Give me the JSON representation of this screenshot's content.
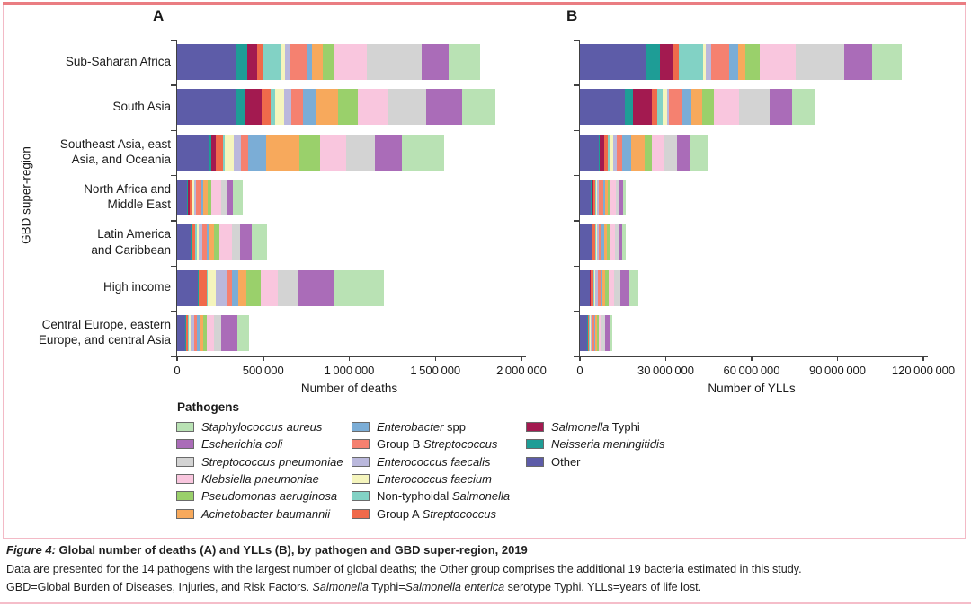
{
  "figure": {
    "panel_a_letter": "A",
    "panel_b_letter": "B",
    "y_axis_title": "GBD super-region",
    "legend_title": "Pathogens",
    "caption_title_prefix": "Figure 4:",
    "caption_title_rest": " Global number of deaths (A) and YLLs (B), by pathogen and GBD super-region, 2019",
    "caption_line2": "Data are presented for the 14 pathogens with the largest number of global deaths; the Other group comprises the additional 19 bacteria estimated in this study.",
    "caption_line3_segments": [
      {
        "t": "GBD=Global Burden of Diseases, Injuries, and Risk Factors. ",
        "i": false
      },
      {
        "t": "Salmonella",
        "i": true
      },
      {
        "t": " Typhi=",
        "i": false
      },
      {
        "t": "Salmonella enterica",
        "i": true
      },
      {
        "t": " serotype Typhi. YLLs=years of life lost.",
        "i": false
      }
    ],
    "frame_border_color": "#f3bac6",
    "frame_top_bar_color": "#ea7d82"
  },
  "pathogens": {
    "s_aureus": {
      "pre": "",
      "it": "Staphylococcus aureus",
      "post": "",
      "color": "#b9e2b4"
    },
    "e_coli": {
      "pre": "",
      "it": "Escherichia coli",
      "post": "",
      "color": "#aa6cb8"
    },
    "s_pneumoniae": {
      "pre": "",
      "it": "Streptococcus pneumoniae",
      "post": "",
      "color": "#d3d3d3"
    },
    "k_pneumoniae": {
      "pre": "",
      "it": "Klebsiella pneumoniae",
      "post": "",
      "color": "#f9c6de"
    },
    "p_aeruginosa": {
      "pre": "",
      "it": "Pseudomonas aeruginosa",
      "post": "",
      "color": "#9ad06b"
    },
    "a_baumannii": {
      "pre": "",
      "it": "Acinetobacter baumannii",
      "post": "",
      "color": "#f7a95c"
    },
    "enterobacter": {
      "pre": "",
      "it": "Enterobacter",
      "post": " spp",
      "color": "#7badd6"
    },
    "group_b_strep": {
      "pre": "Group B ",
      "it": "Streptococcus",
      "post": "",
      "color": "#f58170"
    },
    "e_faecalis": {
      "pre": "",
      "it": "Enterococcus faecalis",
      "post": "",
      "color": "#bab8dc"
    },
    "e_faecium": {
      "pre": "",
      "it": "Enterococcus faecium",
      "post": "",
      "color": "#f5f5bd"
    },
    "nt_salmonella": {
      "pre": "Non-typhoidal ",
      "it": "Salmonella",
      "post": "",
      "color": "#82d2c5"
    },
    "group_a_strep": {
      "pre": "Group A ",
      "it": "Streptococcus",
      "post": "",
      "color": "#f06a4b"
    },
    "s_typhi": {
      "pre": "",
      "it": "Salmonella",
      "post": " Typhi",
      "color": "#a31a50"
    },
    "n_meningitidis": {
      "pre": "",
      "it": "Neisseria meningitidis",
      "post": "",
      "color": "#1e9d96"
    },
    "other": {
      "pre": "Other",
      "it": "",
      "post": "",
      "color": "#5d5ca8"
    }
  },
  "legend_columns": [
    [
      "s_aureus",
      "e_coli",
      "s_pneumoniae",
      "k_pneumoniae",
      "p_aeruginosa",
      "a_baumannii"
    ],
    [
      "enterobacter",
      "group_b_strep",
      "e_faecalis",
      "e_faecium",
      "nt_salmonella",
      "group_a_strep"
    ],
    [
      "s_typhi",
      "n_meningitidis",
      "other"
    ]
  ],
  "regions": [
    {
      "name": "Sub-Saharan Africa",
      "lines": [
        "Sub-Saharan Africa"
      ]
    },
    {
      "name": "South Asia",
      "lines": [
        "South Asia"
      ]
    },
    {
      "name": "Southeast Asia, east Asia, and Oceania",
      "lines": [
        "Southeast Asia, east",
        "Asia, and Oceania"
      ]
    },
    {
      "name": "North Africa and Middle East",
      "lines": [
        "North Africa and",
        "Middle East"
      ]
    },
    {
      "name": "Latin America and Caribbean",
      "lines": [
        "Latin America",
        "and Caribbean"
      ]
    },
    {
      "name": "High income",
      "lines": [
        "High income"
      ]
    },
    {
      "name": "Central Europe, eastern Europe, and central Asia",
      "lines": [
        "Central Europe, eastern",
        "Europe, and central Asia"
      ]
    }
  ],
  "chart_data": [
    {
      "type": "bar",
      "orientation": "horizontal",
      "stacked": true,
      "panel": "A",
      "title": "Global number of deaths by pathogen and GBD super-region, 2019",
      "xlabel": "Number of deaths",
      "ylabel": "GBD super-region",
      "xlim": [
        0,
        2000000
      ],
      "grid": false,
      "legend_position": "bottom",
      "xticks": [
        {
          "v": 0,
          "label": "0"
        },
        {
          "v": 500000,
          "label": "500 000"
        },
        {
          "v": 1000000,
          "label": "1 000 000"
        },
        {
          "v": 1500000,
          "label": "1 500 000"
        },
        {
          "v": 2000000,
          "label": "2 000 000"
        }
      ],
      "categories": [
        "Sub-Saharan Africa",
        "South Asia",
        "Southeast Asia, east Asia, and Oceania",
        "North Africa and Middle East",
        "Latin America and Caribbean",
        "High income",
        "Central Europe, eastern Europe, and central Asia"
      ],
      "series": [
        {
          "id": "other",
          "name": "Other",
          "values": [
            342000,
            346000,
            183000,
            58000,
            79000,
            122000,
            47000
          ]
        },
        {
          "id": "n_meningitidis",
          "name": "Neisseria meningitidis",
          "values": [
            64000,
            52000,
            17000,
            5000,
            5000,
            3000,
            3000
          ]
        },
        {
          "id": "s_typhi",
          "name": "Salmonella Typhi",
          "values": [
            58000,
            91000,
            23000,
            8000,
            5000,
            2000,
            3000
          ]
        },
        {
          "id": "group_a_strep",
          "name": "Group A Streptococcus",
          "values": [
            30000,
            52000,
            43000,
            13000,
            18000,
            44000,
            10000
          ]
        },
        {
          "id": "nt_salmonella",
          "name": "Non-typhoidal Salmonella",
          "values": [
            110000,
            26000,
            10000,
            5000,
            8000,
            5000,
            5000
          ]
        },
        {
          "id": "e_faecium",
          "name": "Enterococcus faecium",
          "values": [
            21000,
            52000,
            52000,
            8000,
            10000,
            49000,
            13000
          ]
        },
        {
          "id": "e_faecalis",
          "name": "Enterococcus faecalis",
          "values": [
            31000,
            44000,
            43000,
            13000,
            21000,
            61000,
            18000
          ]
        },
        {
          "id": "group_b_strep",
          "name": "Group B Streptococcus",
          "values": [
            99000,
            70000,
            43000,
            29000,
            26000,
            35000,
            16000
          ]
        },
        {
          "id": "enterobacter",
          "name": "Enterobacter spp",
          "values": [
            29000,
            70000,
            105000,
            13000,
            18000,
            35000,
            16000
          ]
        },
        {
          "id": "a_baumannii",
          "name": "Acinetobacter baumannii",
          "values": [
            63000,
            131000,
            192000,
            24000,
            26000,
            44000,
            21000
          ]
        },
        {
          "id": "p_aeruginosa",
          "name": "Pseudomonas aeruginosa",
          "values": [
            65000,
            114000,
            122000,
            24000,
            31000,
            87000,
            21000
          ]
        },
        {
          "id": "k_pneumoniae",
          "name": "Klebsiella pneumoniae",
          "values": [
            192000,
            174000,
            148000,
            58000,
            73000,
            96000,
            42000
          ]
        },
        {
          "id": "s_pneumoniae",
          "name": "Streptococcus pneumoniae",
          "values": [
            319000,
            227000,
            166000,
            34000,
            47000,
            122000,
            42000
          ]
        },
        {
          "id": "e_coli",
          "name": "Escherichia coli",
          "values": [
            157000,
            209000,
            157000,
            31000,
            68000,
            209000,
            94000
          ]
        },
        {
          "id": "s_aureus",
          "name": "Staphylococcus aureus",
          "values": [
            182000,
            192000,
            245000,
            60000,
            89000,
            288000,
            68000
          ]
        }
      ]
    },
    {
      "type": "bar",
      "orientation": "horizontal",
      "stacked": true,
      "panel": "B",
      "title": "Global number of YLLs by pathogen and GBD super-region, 2019",
      "xlabel": "Number of YLLs",
      "ylabel": "GBD super-region",
      "xlim": [
        0,
        120000000
      ],
      "grid": false,
      "legend_position": "bottom",
      "xticks": [
        {
          "v": 0,
          "label": "0"
        },
        {
          "v": 30000000,
          "label": "30 000 000"
        },
        {
          "v": 60000000,
          "label": "60 000 000"
        },
        {
          "v": 90000000,
          "label": "90 000 000"
        },
        {
          "v": 120000000,
          "label": "120 000 000"
        }
      ],
      "categories": [
        "Sub-Saharan Africa",
        "South Asia",
        "Southeast Asia, east Asia, and Oceania",
        "North Africa and Middle East",
        "Latin America and Caribbean",
        "High income",
        "Central Europe, eastern Europe, and central Asia"
      ],
      "series": [
        {
          "id": "other",
          "name": "Other",
          "values": [
            23000000,
            15700000,
            6500000,
            3900000,
            4000000,
            3400000,
            2600000
          ]
        },
        {
          "id": "n_meningitidis",
          "name": "Neisseria meningitidis",
          "values": [
            5000000,
            2800000,
            400000,
            300000,
            200000,
            200000,
            100000
          ]
        },
        {
          "id": "s_typhi",
          "name": "Salmonella Typhi",
          "values": [
            4600000,
            6600000,
            1500000,
            500000,
            200000,
            100000,
            100000
          ]
        },
        {
          "id": "group_a_strep",
          "name": "Group A Streptococcus",
          "values": [
            1900000,
            1800000,
            1300000,
            700000,
            800000,
            1000000,
            500000
          ]
        },
        {
          "id": "nt_salmonella",
          "name": "Non-typhoidal Salmonella",
          "values": [
            8500000,
            2100000,
            600000,
            400000,
            400000,
            300000,
            200000
          ]
        },
        {
          "id": "e_faecium",
          "name": "Enterococcus faecium",
          "values": [
            900000,
            1400000,
            1400000,
            300000,
            300000,
            500000,
            300000
          ]
        },
        {
          "id": "e_faecalis",
          "name": "Enterococcus faecalis",
          "values": [
            1900000,
            700000,
            1300000,
            500000,
            600000,
            700000,
            400000
          ]
        },
        {
          "id": "group_b_strep",
          "name": "Group B Streptococcus",
          "values": [
            6300000,
            4700000,
            1900000,
            1500000,
            1200000,
            1000000,
            800000
          ]
        },
        {
          "id": "enterobacter",
          "name": "Enterobacter spp",
          "values": [
            3100000,
            3100000,
            3000000,
            700000,
            800000,
            700000,
            500000
          ]
        },
        {
          "id": "a_baumannii",
          "name": "Acinetobacter baumannii",
          "values": [
            2500000,
            3700000,
            4600000,
            900000,
            900000,
            800000,
            600000
          ]
        },
        {
          "id": "p_aeruginosa",
          "name": "Pseudomonas aeruginosa",
          "values": [
            5300000,
            4200000,
            2700000,
            900000,
            900000,
            1500000,
            600000
          ]
        },
        {
          "id": "k_pneumoniae",
          "name": "Klebsiella pneumoniae",
          "values": [
            12500000,
            8900000,
            3900000,
            2000000,
            1900000,
            1900000,
            1000000
          ]
        },
        {
          "id": "s_pneumoniae",
          "name": "Streptococcus pneumoniae",
          "values": [
            17000000,
            10500000,
            4900000,
            1300000,
            1300000,
            2200000,
            1000000
          ]
        },
        {
          "id": "e_coli",
          "name": "Escherichia coli",
          "values": [
            9500000,
            7900000,
            4600000,
            1100000,
            1200000,
            3100000,
            1600000
          ]
        },
        {
          "id": "s_aureus",
          "name": "Staphylococcus aureus",
          "values": [
            10500000,
            7900000,
            5900000,
            1000000,
            1500000,
            3100000,
            900000
          ]
        }
      ]
    }
  ]
}
